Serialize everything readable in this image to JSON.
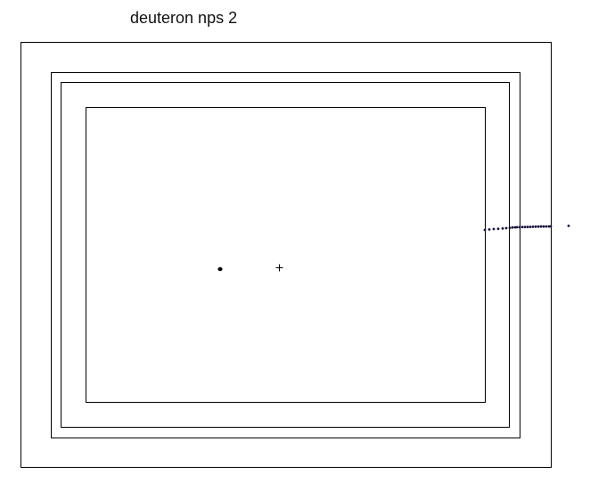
{
  "title": "deuteron nps 2",
  "colors": {
    "frame_stroke": "#000000",
    "track_points": "#1a0f3a",
    "blob": "#000000",
    "center_marker": "#000000"
  }
}
